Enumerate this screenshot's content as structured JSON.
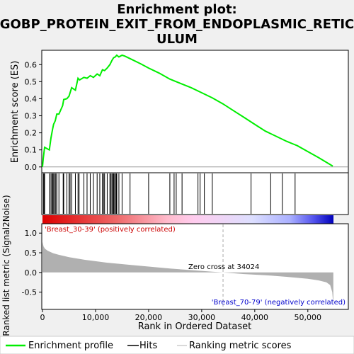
{
  "title_lines": [
    "Enrichment plot:",
    "GOBP_PROTEIN_EXIT_FROM_ENDOPLASMIC_RETIC",
    "ULUM"
  ],
  "colors": {
    "enrichment_line": "#00ee00",
    "positive_label": "#cc0000",
    "negative_label": "#0000cc",
    "metric_fill": "#b0b0b0",
    "hit_line": "#000000"
  },
  "chart_data": {
    "type": "line",
    "x_axis": {
      "label": "Rank in Ordered Dataset",
      "range": [
        0,
        57500
      ],
      "ticks": [
        0,
        10000,
        20000,
        30000,
        40000,
        50000
      ],
      "tick_labels": [
        "0",
        "10,000",
        "20,000",
        "30,000",
        "40,000",
        "50,000"
      ]
    },
    "es_panel": {
      "ylabel": "Enrichment score (ES)",
      "ylim": [
        -0.03,
        0.68
      ],
      "yticks": [
        0.0,
        0.1,
        0.2,
        0.3,
        0.4,
        0.5,
        0.6
      ],
      "ytick_labels": [
        "0.0",
        "0.1",
        "0.2",
        "0.3",
        "0.4",
        "0.5",
        "0.6"
      ],
      "series": [
        {
          "name": "Enrichment profile",
          "x": [
            0,
            150,
            400,
            1300,
            1600,
            1900,
            2100,
            2400,
            2700,
            3100,
            3800,
            4000,
            4600,
            5000,
            5500,
            6200,
            6700,
            7000,
            7800,
            8400,
            9000,
            9600,
            10300,
            10800,
            11300,
            11700,
            12200,
            12700,
            13100,
            13400,
            13700,
            14000,
            14400,
            15000,
            15500,
            16500,
            18500,
            20000,
            22000,
            24000,
            26000,
            28000,
            30000,
            32000,
            34000,
            36000,
            38000,
            40000,
            42000,
            44000,
            46000,
            47600,
            48000,
            50000,
            52000,
            54700
          ],
          "y": [
            0.0,
            0.05,
            0.115,
            0.1,
            0.17,
            0.22,
            0.25,
            0.27,
            0.31,
            0.31,
            0.36,
            0.395,
            0.4,
            0.415,
            0.465,
            0.45,
            0.52,
            0.51,
            0.525,
            0.52,
            0.535,
            0.525,
            0.545,
            0.535,
            0.57,
            0.565,
            0.58,
            0.6,
            0.625,
            0.64,
            0.645,
            0.655,
            0.645,
            0.655,
            0.65,
            0.635,
            0.605,
            0.58,
            0.55,
            0.515,
            0.49,
            0.465,
            0.435,
            0.405,
            0.37,
            0.33,
            0.29,
            0.25,
            0.21,
            0.18,
            0.15,
            0.13,
            0.125,
            0.09,
            0.055,
            0.005
          ]
        }
      ]
    },
    "hits": [
      150,
      280,
      400,
      1300,
      1600,
      1800,
      1900,
      2100,
      2300,
      2500,
      2700,
      3100,
      3900,
      4000,
      4600,
      5000,
      5200,
      5500,
      6200,
      6700,
      6900,
      7800,
      8400,
      9000,
      9600,
      10300,
      10800,
      11300,
      11500,
      11700,
      12200,
      12700,
      12900,
      13100,
      13300,
      13400,
      13600,
      13700,
      13900,
      14000,
      14400,
      15000,
      16500,
      20000,
      24000,
      24800,
      25200,
      26300,
      29300,
      29700,
      30500,
      32000,
      39300,
      43000,
      45200,
      47600
    ],
    "metric_panel": {
      "ylabel": "Ranked list metric (Signal2Noise)",
      "ylim": [
        -0.92,
        1.22
      ],
      "yticks": [
        -0.5,
        0.0,
        0.5,
        1.0
      ],
      "ytick_labels": [
        "-0.5",
        "0.0",
        "0.5",
        "1.0"
      ],
      "x": [
        0,
        200,
        500,
        1000,
        2000,
        3000,
        5000,
        8000,
        12000,
        16000,
        20000,
        24000,
        28000,
        32000,
        34024,
        38000,
        42000,
        46000,
        50000,
        52000,
        53500,
        54200,
        54600,
        54800
      ],
      "values": [
        0.78,
        0.66,
        0.6,
        0.55,
        0.49,
        0.45,
        0.39,
        0.32,
        0.25,
        0.2,
        0.15,
        0.1,
        0.06,
        0.02,
        0.0,
        -0.04,
        -0.07,
        -0.11,
        -0.16,
        -0.2,
        -0.25,
        -0.32,
        -0.5,
        -0.85
      ]
    },
    "annotations": {
      "positive": "'Breast_30-39' (positively correlated)",
      "negative": "'Breast_70-79' (negatively correlated)",
      "zero_cross": "Zero cross at 34024",
      "zero_cross_x": 34024
    },
    "legend": {
      "placement": "bottom",
      "items": [
        "Enrichment profile",
        "Hits",
        "Ranking metric scores"
      ]
    }
  }
}
